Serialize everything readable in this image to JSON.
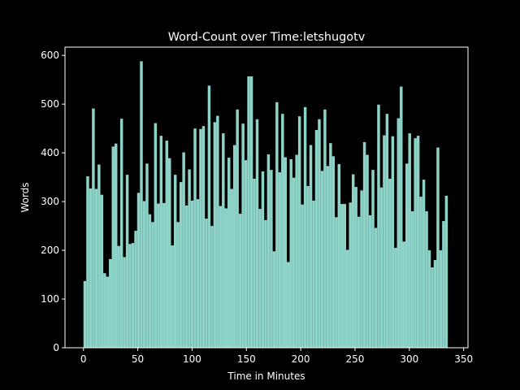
{
  "chart_data": {
    "type": "histogram",
    "title": "Word-Count over Time:letshugotv",
    "xlabel": "Time in Minutes",
    "ylabel": "Words",
    "color": "#8dd3c7",
    "bins": [
      0,
      2.6,
      5.2,
      7.8,
      10.4,
      13,
      15.6,
      18.2,
      20.8,
      23.4,
      26,
      28.6,
      31.2,
      33.8,
      36.4,
      39,
      41.6,
      44.2,
      46.8,
      49.4,
      52,
      54.6,
      57.2,
      59.8,
      62.4,
      65,
      67.6,
      70.2,
      72.8,
      75.4,
      78,
      80.6,
      83.2,
      85.8,
      88.4,
      91,
      93.6,
      96.2,
      98.8,
      101.4,
      104,
      106.6,
      109.2,
      111.8,
      114.4,
      117,
      119.6,
      122.2,
      124.8,
      127.4,
      130,
      132.6,
      135.2,
      137.8,
      140.4,
      143,
      145.6,
      148.2,
      150.8,
      153.4,
      156,
      158.6,
      161.2,
      163.8,
      166.4,
      169,
      171.6,
      174.2,
      176.8,
      179.4,
      182,
      184.6,
      187.2,
      189.8,
      192.4,
      195,
      197.6,
      200.2,
      202.8,
      205.4,
      208,
      210.6,
      213.2,
      215.8,
      218.4,
      221,
      223.6,
      226.2,
      228.8,
      231.4,
      234,
      236.6,
      239.2,
      241.8,
      244.4,
      247,
      249.6,
      252.2,
      254.8,
      257.4,
      260,
      262.6,
      265.2,
      267.8,
      270.4,
      273,
      275.6,
      278.2,
      280.8,
      283.4,
      286,
      288.6,
      291.2,
      293.8,
      296.4,
      299,
      301.6,
      304.2,
      306.8,
      309.4,
      312,
      314.6,
      317.2,
      319.8,
      322.4,
      325,
      327.6,
      330.2,
      332.8,
      335.4
    ],
    "counts": [
      137,
      352,
      327,
      491,
      326,
      376,
      314,
      153,
      146,
      182,
      413,
      419,
      209,
      470,
      186,
      355,
      213,
      215,
      240,
      318,
      588,
      301,
      378,
      274,
      258,
      461,
      296,
      435,
      297,
      425,
      389,
      210,
      355,
      258,
      340,
      401,
      292,
      366,
      302,
      450,
      305,
      449,
      455,
      265,
      538,
      250,
      463,
      476,
      291,
      440,
      286,
      390,
      326,
      416,
      489,
      275,
      460,
      385,
      557,
      557,
      347,
      469,
      285,
      362,
      262,
      397,
      365,
      198,
      504,
      360,
      480,
      391,
      176,
      387,
      349,
      396,
      475,
      294,
      494,
      332,
      416,
      302,
      447,
      469,
      363,
      489,
      373,
      420,
      393,
      268,
      377,
      295,
      295,
      201,
      298,
      356,
      330,
      269,
      323,
      422,
      396,
      272,
      365,
      246,
      499,
      329,
      436,
      480,
      347,
      434,
      205,
      471,
      536,
      218,
      378,
      440,
      280,
      430,
      435,
      310,
      345,
      280,
      200,
      165,
      180,
      411,
      200,
      260,
      312
    ],
    "xlim": [
      -17,
      354
    ],
    "ylim": [
      0,
      617
    ],
    "xticks": [
      0,
      50,
      100,
      150,
      200,
      250,
      300,
      350
    ],
    "yticks": [
      0,
      100,
      200,
      300,
      400,
      500,
      600
    ]
  }
}
